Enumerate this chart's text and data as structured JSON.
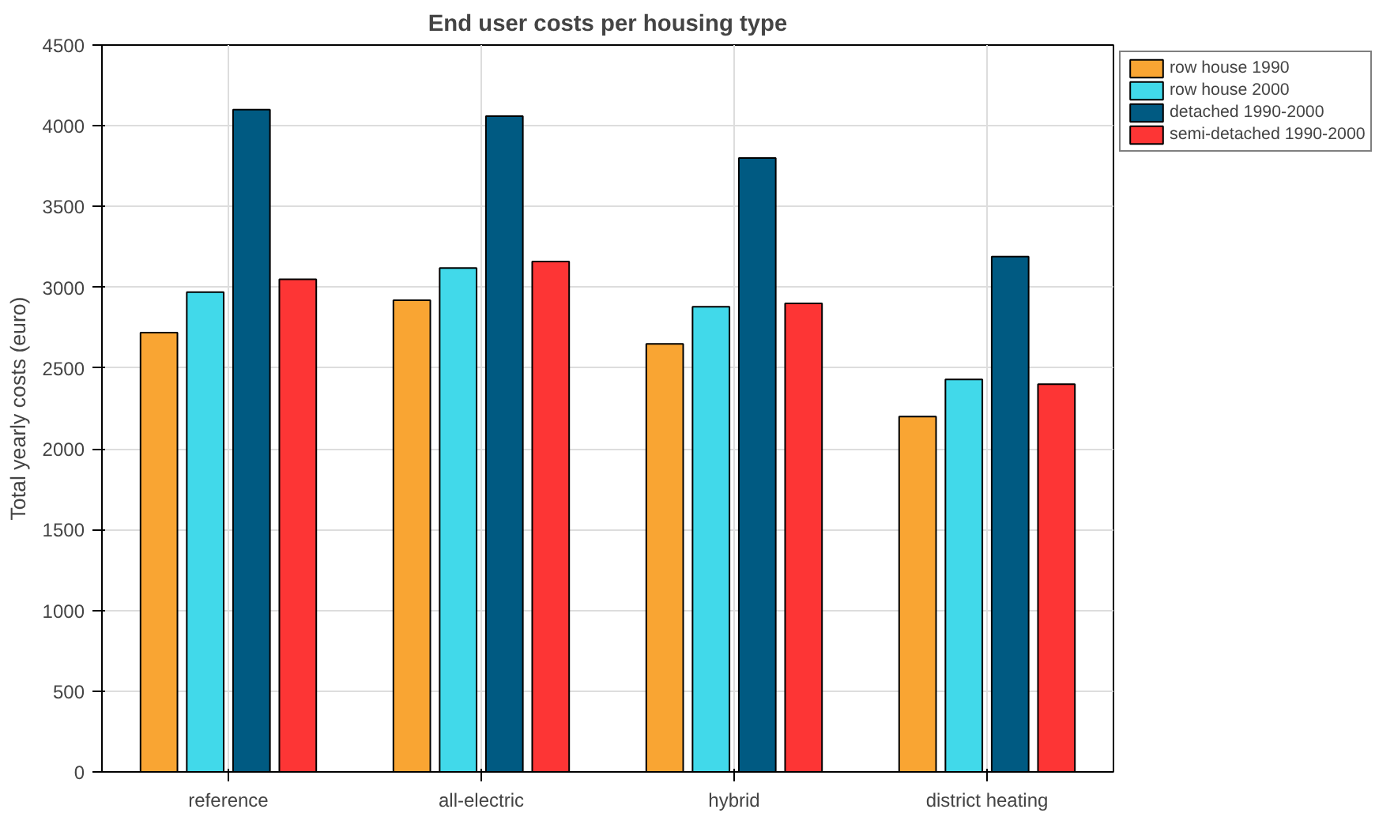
{
  "chart_data": {
    "type": "bar",
    "title": "End user costs per housing type",
    "ylabel": "Total yearly costs (euro)",
    "categories": [
      "reference",
      "all-electric",
      "hybrid",
      "district heating"
    ],
    "series": [
      {
        "name": "row house 1990",
        "color": "#f9a533",
        "values": [
          2720,
          2920,
          2650,
          2200
        ]
      },
      {
        "name": "row house 2000",
        "color": "#41d9ea",
        "values": [
          2970,
          3120,
          2880,
          2430
        ]
      },
      {
        "name": "detached 1990-2000",
        "color": "#005a82",
        "values": [
          4100,
          4060,
          3800,
          3190
        ]
      },
      {
        "name": "semi-detached 1990-2000",
        "color": "#fd3535",
        "values": [
          3050,
          3160,
          2900,
          2400
        ]
      }
    ],
    "ylim": [
      0,
      4500
    ],
    "yticks": [
      0,
      500,
      1000,
      1500,
      2000,
      2500,
      3000,
      3500,
      4000,
      4500
    ],
    "grid": true,
    "legend": "top right"
  }
}
